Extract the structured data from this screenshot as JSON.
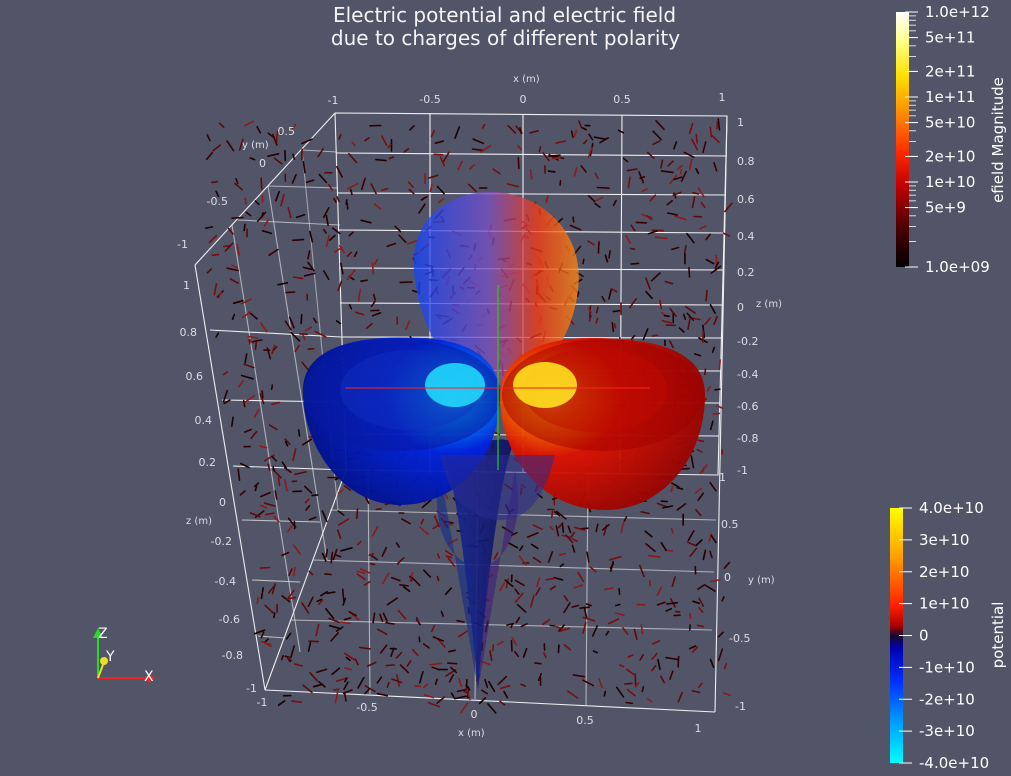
{
  "title": {
    "line1": "Electric potential and electric field",
    "line2": "due to charges of different polarity"
  },
  "axes": {
    "x_label": "x (m)",
    "y_label": "y (m)",
    "z_label": "z (m)",
    "x_ticks": [
      "-1",
      "-0.5",
      "0",
      "0.5",
      "1"
    ],
    "y_ticks": [
      "-1",
      "-0.5",
      "0",
      "0.5",
      "1"
    ],
    "z_ticks": [
      "-1",
      "-0.8",
      "-0.6",
      "-0.4",
      "-0.2",
      "0",
      "0.2",
      "0.4",
      "0.6",
      "0.8",
      "1"
    ],
    "grid": true
  },
  "colorbars": {
    "efield": {
      "title": "efield Magnitude",
      "scale": "log",
      "range": [
        1000000000.0,
        1000000000000.0
      ],
      "labels": [
        "1.0e+12",
        "5e+11",
        "2e+11",
        "1e+11",
        "5e+10",
        "2e+10",
        "1e+10",
        "5e+9",
        "1.0e+09"
      ],
      "colormap": [
        "#ffffff",
        "#ffff66",
        "#ffd200",
        "#ff8c00",
        "#ff2a00",
        "#c40000",
        "#5a0000",
        "#000000"
      ]
    },
    "potential": {
      "title": "potential",
      "scale": "linear",
      "range": [
        -40000000000.0,
        40000000000.0
      ],
      "labels": [
        "4.0e+10",
        "3e+10",
        "2e+10",
        "1e+10",
        "0",
        "-1e+10",
        "-2e+10",
        "-3e+10",
        "-4.0e+10"
      ],
      "colormap": [
        "#ffff00",
        "#ff9900",
        "#ff3300",
        "#cc0000",
        "#0a0a2a",
        "#0000cc",
        "#0044ff",
        "#0099ff",
        "#00ffff"
      ]
    }
  },
  "orientation_axes": {
    "x": "X",
    "y": "Y",
    "z": "Z"
  },
  "colors": {
    "background": "#525567",
    "positive_charge": "#d00000",
    "negative_charge": "#0010c0"
  }
}
